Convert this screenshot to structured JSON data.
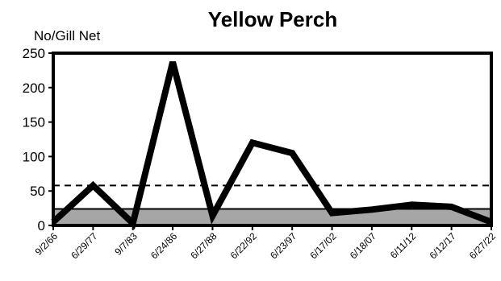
{
  "chart_data": {
    "type": "line",
    "title": "Yellow Perch",
    "ylabel": "No/Gill Net",
    "xlabel": "",
    "ylim": [
      0,
      250
    ],
    "yticks": [
      0,
      50,
      100,
      150,
      200,
      250
    ],
    "grid": false,
    "categories": [
      "9/2/66",
      "6/29/77",
      "9/7/83",
      "6/24/86",
      "6/27/88",
      "6/22/92",
      "6/23/97",
      "6/17/02",
      "6/18/07",
      "6/11/12",
      "6/12/17",
      "6/27/22"
    ],
    "series": [
      {
        "values": [
          5,
          58,
          3,
          237,
          14,
          120,
          105,
          18,
          23,
          30,
          27,
          5
        ]
      }
    ],
    "reference_lines": [
      {
        "style": "dashed",
        "value": 58
      },
      {
        "style": "solid",
        "value": 24,
        "filled_below": true
      }
    ],
    "colors": {
      "line": "#000000",
      "band_fill": "#a6a6a6",
      "axis": "#000000"
    }
  }
}
